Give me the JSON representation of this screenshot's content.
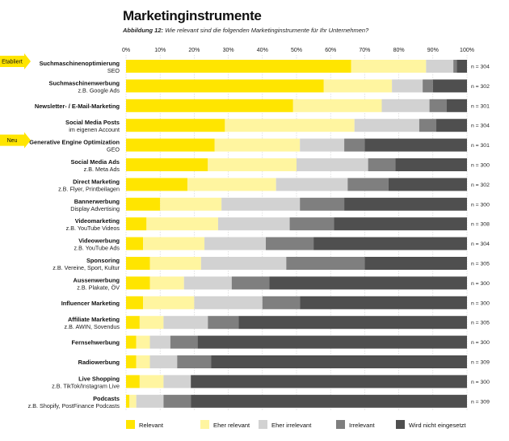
{
  "title": "Marketinginstrumente",
  "figure_label": "Abbildung 12:",
  "subtitle": "Wie relevant sind die folgenden Marketinginstrumente für Ihr Unternehmen?",
  "colors": {
    "Relevant": "#FFE500",
    "Eher relevant": "#FFF5A0",
    "Eher irrelevant": "#D2D2D2",
    "Irrelevant": "#7F7F7F",
    "Wird nicht eingesetzt": "#4F4F4F",
    "arrow": "#FFE500"
  },
  "chart_data": {
    "type": "bar",
    "orientation": "horizontal",
    "stacked": true,
    "xlim": [
      0,
      100
    ],
    "x_ticks": [
      "0%",
      "10%",
      "20%",
      "30%",
      "40%",
      "50%",
      "60%",
      "70%",
      "80%",
      "90%",
      "100%"
    ],
    "grid": true,
    "legend_position": "bottom",
    "series_names": [
      "Relevant",
      "Eher relevant",
      "Eher irrelevant",
      "Irrelevant",
      "Wird nicht eingesetzt"
    ],
    "categories": [
      {
        "label": "Suchmaschinenoptimierung",
        "sub": "SEO",
        "n": "n = 304",
        "badge": "Etabliert",
        "values": [
          66,
          22,
          8,
          1,
          3
        ]
      },
      {
        "label": "Suchmaschinenwerbung",
        "sub": "z.B. Google Ads",
        "n": "n = 302",
        "values": [
          58,
          20,
          9,
          3,
          10
        ]
      },
      {
        "label": "Newsletter- / E-Mail-Marketing",
        "sub": "",
        "n": "n = 301",
        "values": [
          49,
          26,
          14,
          5,
          6
        ]
      },
      {
        "label": "Social Media Posts",
        "sub": "im eigenen Account",
        "n": "n = 304",
        "values": [
          29,
          38,
          19,
          5,
          9
        ]
      },
      {
        "label": "Generative Engine Optimization",
        "sub": "GEO",
        "n": "n = 301",
        "badge": "Neu",
        "values": [
          26,
          25,
          13,
          6,
          30
        ]
      },
      {
        "label": "Social Media Ads",
        "sub": "z.B. Meta Ads",
        "n": "n = 300",
        "values": [
          24,
          26,
          21,
          8,
          21
        ]
      },
      {
        "label": "Direct Marketing",
        "sub": "z.B. Flyer, Printbeilagen",
        "n": "n = 302",
        "values": [
          18,
          26,
          21,
          12,
          23
        ]
      },
      {
        "label": "Bannerwerbung",
        "sub": "Display Advertising",
        "n": "n = 300",
        "values": [
          10,
          18,
          23,
          13,
          36
        ]
      },
      {
        "label": "Videomarketing",
        "sub": "z.B. YouTube Videos",
        "n": "n = 308",
        "values": [
          6,
          21,
          21,
          13,
          39
        ]
      },
      {
        "label": "Videowerbung",
        "sub": "z.B. YouTube Ads",
        "n": "n = 304",
        "values": [
          5,
          18,
          18,
          14,
          45
        ]
      },
      {
        "label": "Sponsoring",
        "sub": "z.B. Vereine, Sport, Kultur",
        "n": "n = 305",
        "values": [
          7,
          15,
          25,
          23,
          30
        ]
      },
      {
        "label": "Aussenwerbung",
        "sub": "z.B. Plakate, ÖV",
        "n": "n = 300",
        "values": [
          7,
          10,
          14,
          11,
          58
        ]
      },
      {
        "label": "Influencer Marketing",
        "sub": "",
        "n": "n = 300",
        "values": [
          5,
          15,
          20,
          11,
          49
        ]
      },
      {
        "label": "Affiliate Marketing",
        "sub": "z.B. AWIN, Sovendus",
        "n": "n = 305",
        "values": [
          4,
          7,
          13,
          9,
          67
        ]
      },
      {
        "label": "Fernsehwerbung",
        "sub": "",
        "n": "n = 300",
        "values": [
          3,
          4,
          6,
          8,
          79
        ]
      },
      {
        "label": "Radiowerbung",
        "sub": "",
        "n": "n = 309",
        "values": [
          3,
          4,
          8,
          10,
          75
        ]
      },
      {
        "label": "Live Shopping",
        "sub": "z.B. TikTok/Instagram Live",
        "n": "n = 300",
        "values": [
          4,
          7,
          8,
          0,
          81
        ]
      },
      {
        "label": "Podcasts",
        "sub": "z.B. Shopify, PostFinance Podcasts",
        "n": "n = 309",
        "values": [
          1,
          2,
          8,
          8,
          81
        ]
      }
    ]
  }
}
